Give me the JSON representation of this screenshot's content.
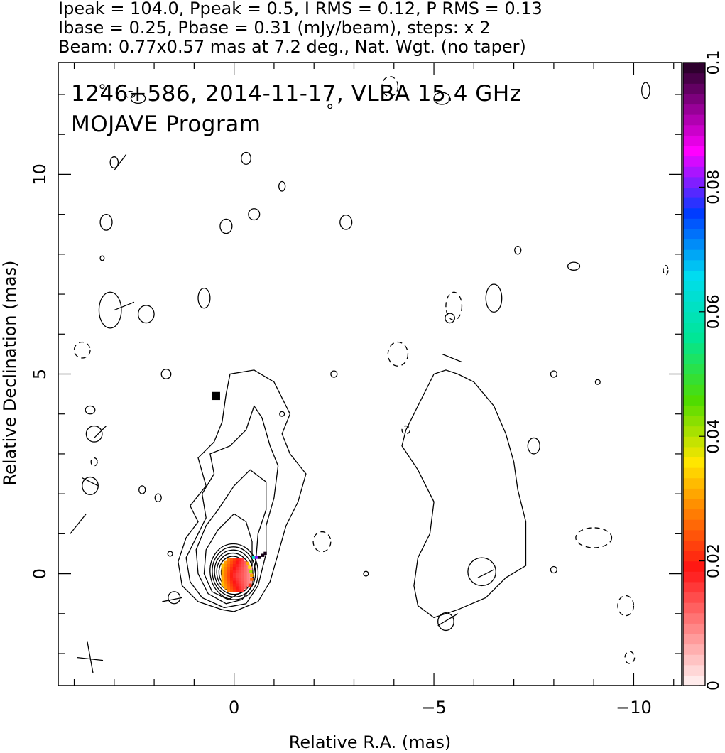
{
  "chart_data": {
    "type": "contour",
    "header_lines": [
      "Ipeak = 104.0, Ppeak = 0.5, I RMS = 0.12, P RMS = 0.13",
      "Ibase = 0.25, Pbase = 0.31 (mJy/beam), steps: x 2",
      "Beam: 0.77x0.57 mas at 7.2 deg., Nat. Wgt. (no taper)"
    ],
    "annotation_lines": [
      "1246+586, 2014-11-17, VLBA 15.4 GHz",
      "MOJAVE Program"
    ],
    "xlabel": "Relative R.A. (mas)",
    "ylabel": "Relative Declination (mas)",
    "xlim": [
      4.4,
      -11.2
    ],
    "ylim": [
      -2.8,
      12.8
    ],
    "xticks": [
      0,
      -5,
      -10
    ],
    "xtick_labels": [
      "0",
      "−5",
      "−10"
    ],
    "yticks": [
      0,
      5,
      10
    ],
    "ytick_labels": [
      "0",
      "5",
      "10"
    ],
    "grid": false,
    "colorbar": {
      "range": [
        0,
        0.1
      ],
      "ticks": [
        0,
        0.02,
        0.04,
        0.06,
        0.08,
        0.1
      ],
      "tick_labels": [
        "0",
        "0.02",
        "0.04",
        "0.06",
        "0.08",
        "0.1"
      ]
    },
    "left_panel": {
      "core": {
        "x": 0.0,
        "y": 0.0
      },
      "nested_contour_count": 9,
      "contour_steps": "x 2",
      "marker": {
        "x": 0.45,
        "y": 4.45
      }
    },
    "right_panel": {
      "center_x": -5.5,
      "description_free": true
    },
    "beam": {
      "x": 3.6,
      "y": -2.1,
      "major": 0.77,
      "minor": 0.57,
      "pa_deg": 7.2
    }
  }
}
